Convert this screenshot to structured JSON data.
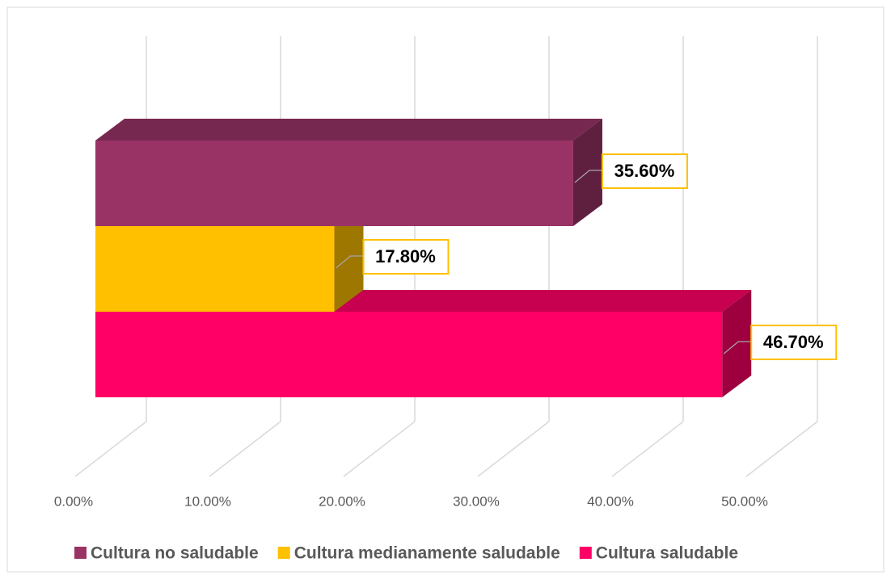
{
  "chart_data": {
    "type": "bar3d",
    "series": [
      {
        "name": "Cultura no saludable",
        "color": "#993366",
        "values": [
          35.6
        ],
        "value_labels": [
          "35.60%"
        ]
      },
      {
        "name": "Cultura medianamente saludable",
        "color": "#ffc000",
        "values": [
          17.8
        ],
        "value_labels": [
          "17.80%"
        ]
      },
      {
        "name": "Cultura saludable",
        "color": "#ff0066",
        "values": [
          46.7
        ],
        "value_labels": [
          "46.70%"
        ]
      }
    ],
    "xlim": [
      0,
      50
    ],
    "xticks": [
      {
        "value": 0,
        "label": "0.00%"
      },
      {
        "value": 10,
        "label": "10.00%"
      },
      {
        "value": 20,
        "label": "20.00%"
      },
      {
        "value": 30,
        "label": "30.00%"
      },
      {
        "value": 40,
        "label": "40.00%"
      },
      {
        "value": 50,
        "label": "50.00%"
      }
    ],
    "grid": true,
    "legend": "bottom"
  }
}
